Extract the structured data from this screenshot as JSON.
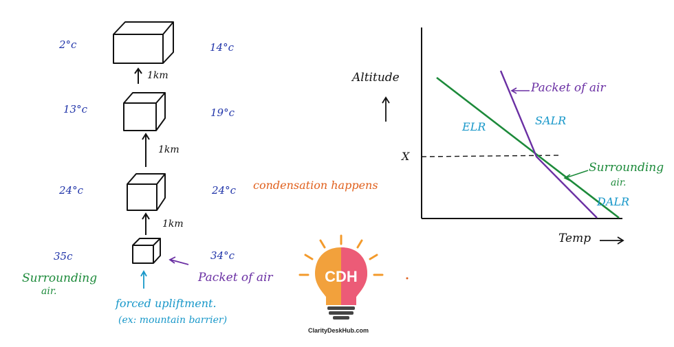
{
  "left": {
    "rows": [
      {
        "left_temp": "2°c",
        "right_temp": "14°c"
      },
      {
        "left_temp": "13°c",
        "right_temp": "19°c"
      },
      {
        "left_temp": "24°c",
        "right_temp": "24°c"
      },
      {
        "left_temp": "35c",
        "right_temp": "34°c"
      }
    ],
    "km_labels": [
      "1km",
      "1km",
      "1km"
    ],
    "condensation": "condensation happens",
    "surrounding_air_1": "Surrounding",
    "surrounding_air_2": "air.",
    "packet_of_air": "Packet of air",
    "forced_1": "forced upliftment.",
    "forced_2": "(ex: mountain barrier)"
  },
  "graph": {
    "y_label": "Altitude",
    "x_label": "Temp",
    "x_marker": "X",
    "elr": "ELR",
    "salr": "SALR",
    "dalr": "DALR",
    "packet_of_air": "Packet of air",
    "surrounding_1": "Surrounding",
    "surrounding_2": "air."
  },
  "logo": {
    "initials": "CDH",
    "site": "ClarityDeskHub.com"
  },
  "colors": {
    "blue": "#1f33a8",
    "green": "#1c8a3a",
    "purple": "#6a2fa3",
    "orange": "#e0601d",
    "cyan": "#1797c9"
  }
}
